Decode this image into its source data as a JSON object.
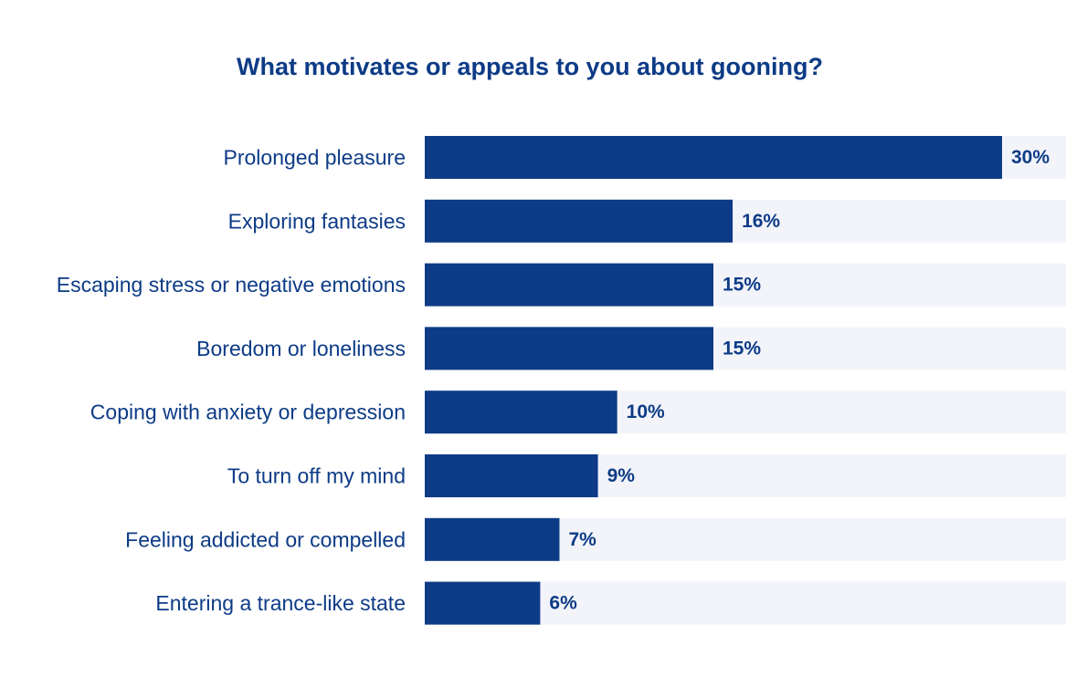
{
  "chart_data": {
    "type": "bar",
    "orientation": "horizontal",
    "title": "What motivates or appeals to you about gooning?",
    "categories": [
      "Prolonged pleasure",
      "Exploring fantasies",
      "Escaping stress or negative emotions",
      "Boredom or loneliness",
      "Coping with anxiety or depression",
      "To turn off my mind",
      "Feeling addicted or compelled",
      "Entering a trance-like state"
    ],
    "values": [
      30,
      16,
      15,
      15,
      10,
      9,
      7,
      6
    ],
    "value_labels": [
      "30%",
      "16%",
      "15%",
      "15%",
      "10%",
      "9%",
      "7%",
      "6%"
    ],
    "unit": "%",
    "xlim": [
      0,
      33
    ],
    "grid": false,
    "legend": "none",
    "colors": {
      "bar": "#0d3b86",
      "track": "#f3f4fa",
      "text": "#0d3b86"
    }
  }
}
